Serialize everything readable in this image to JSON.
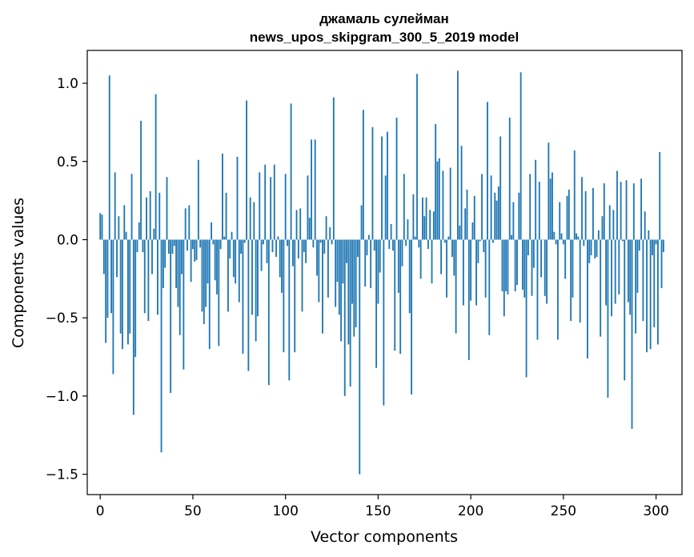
{
  "chart_data": {
    "type": "bar",
    "title": "джамаль сулейман",
    "subtitle": "news_upos_skipgram_300_5_2019 model",
    "xlabel": "Vector components",
    "ylabel": "Components values",
    "xlim": [
      -7,
      314
    ],
    "ylim": [
      -1.63,
      1.21
    ],
    "x_ticks": [
      0,
      50,
      100,
      150,
      200,
      250,
      300
    ],
    "x_tick_labels": [
      "0",
      "50",
      "100",
      "150",
      "200",
      "250",
      "300"
    ],
    "y_ticks": [
      -1.5,
      -1.0,
      -0.5,
      0.0,
      0.5,
      1.0
    ],
    "y_tick_labels": [
      "−1.5",
      "−1.0",
      "−0.5",
      "0.0",
      "0.5",
      "1.0"
    ],
    "bar_color": "#1f77b4",
    "grid": false,
    "values": [
      0.17,
      0.16,
      -0.22,
      -0.66,
      -0.5,
      1.05,
      -0.47,
      -0.86,
      0.43,
      -0.24,
      0.15,
      -0.6,
      -0.7,
      0.22,
      0.05,
      -0.67,
      -0.6,
      0.42,
      -1.12,
      -0.75,
      -0.08,
      0.11,
      0.76,
      -0.08,
      -0.47,
      0.27,
      -0.52,
      0.31,
      -0.22,
      0.07,
      0.93,
      -0.48,
      0.3,
      -1.36,
      -0.31,
      -0.18,
      0.4,
      -0.09,
      -0.98,
      -0.09,
      -0.04,
      -0.31,
      -0.43,
      -0.61,
      -0.22,
      -0.83,
      0.2,
      -0.07,
      0.22,
      -0.27,
      -0.06,
      -0.14,
      -0.13,
      0.51,
      -0.05,
      -0.46,
      -0.54,
      -0.43,
      -0.28,
      -0.7,
      0.11,
      -0.03,
      -0.26,
      -0.35,
      -0.68,
      -0.06,
      0.55,
      0.02,
      0.3,
      -0.46,
      -0.12,
      0.05,
      -0.24,
      -0.28,
      0.53,
      -0.4,
      -0.09,
      -0.73,
      -0.02,
      0.89,
      -0.84,
      0.27,
      -0.48,
      0.24,
      -0.65,
      -0.49,
      0.43,
      -0.2,
      -0.03,
      0.48,
      -0.15,
      -0.93,
      0.4,
      -0.08,
      0.48,
      -0.11,
      0.02,
      -0.24,
      -0.34,
      -0.72,
      0.42,
      -0.04,
      -0.9,
      0.87,
      -0.17,
      -0.72,
      0.19,
      -0.12,
      0.2,
      -0.46,
      -0.08,
      -0.15,
      0.41,
      0.14,
      0.64,
      -0.05,
      0.64,
      -0.23,
      -0.4,
      -0.02,
      -0.6,
      -0.09,
      0.15,
      -0.37,
      0.08,
      -0.03,
      0.91,
      -0.43,
      -0.27,
      -0.48,
      -0.65,
      -0.28,
      -1.0,
      -0.15,
      -0.67,
      -0.94,
      -0.41,
      -0.62,
      -0.56,
      -0.11,
      -1.5,
      0.22,
      0.83,
      -0.3,
      -0.1,
      0.03,
      -0.31,
      0.72,
      -0.07,
      -0.82,
      -0.41,
      -0.21,
      0.66,
      -1.06,
      0.41,
      0.69,
      -0.06,
      0.1,
      -0.07,
      -0.71,
      0.78,
      -0.34,
      -0.73,
      -0.17,
      0.42,
      -0.04,
      0.13,
      -0.47,
      -0.99,
      0.29,
      0.02,
      1.06,
      -0.05,
      -0.25,
      0.27,
      0.15,
      0.27,
      -0.06,
      0.19,
      -0.28,
      0.18,
      0.74,
      0.5,
      0.52,
      -0.22,
      0.44,
      -0.02,
      -0.37,
      0.02,
      0.46,
      -0.11,
      -0.23,
      -0.6,
      1.08,
      0.09,
      0.6,
      -0.42,
      0.2,
      0.32,
      -0.77,
      -0.39,
      0.11,
      0.28,
      -0.42,
      -0.15,
      -0.01,
      0.42,
      -0.08,
      -0.37,
      0.88,
      -0.61,
      0.41,
      -0.02,
      0.3,
      0.25,
      0.34,
      0.66,
      -0.33,
      -0.49,
      -0.33,
      -0.35,
      0.78,
      0.03,
      0.24,
      -0.33,
      -0.29,
      0.3,
      1.07,
      -0.32,
      -0.37,
      -0.88,
      -0.1,
      0.42,
      -0.36,
      -0.18,
      0.51,
      -0.64,
      0.37,
      -0.24,
      0.0,
      -0.36,
      -0.41,
      0.62,
      0.39,
      0.43,
      0.05,
      -0.03,
      -0.64,
      0.24,
      0.04,
      -0.03,
      -0.25,
      0.28,
      0.32,
      -0.52,
      -0.37,
      0.57,
      0.04,
      0.02,
      -0.53,
      0.4,
      -0.04,
      0.31,
      -0.76,
      -0.15,
      -0.1,
      0.33,
      -0.12,
      -0.11,
      0.06,
      -0.62,
      0.15,
      0.36,
      -0.42,
      -1.01,
      0.22,
      -0.49,
      0.19,
      -0.41,
      0.44,
      -0.35,
      0.37,
      -0.01,
      -0.9,
      0.38,
      -0.4,
      -0.48,
      -1.21,
      0.36,
      -0.6,
      -0.34,
      -0.07,
      0.39,
      -0.52,
      0.18,
      -0.72,
      0.06,
      -0.7,
      -0.1,
      -0.56,
      -0.03,
      -0.67,
      0.56,
      -0.31,
      -0.08
    ]
  }
}
